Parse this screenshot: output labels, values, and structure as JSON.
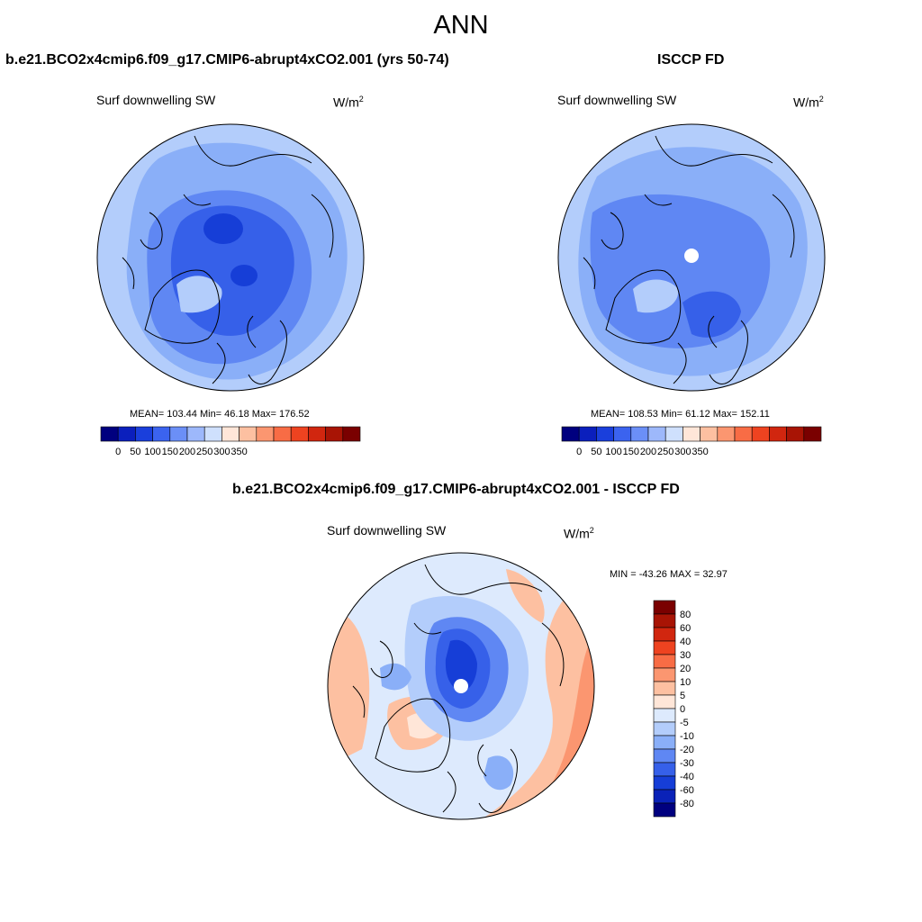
{
  "main_title": "ANN",
  "top_left": {
    "title": "b.e21.BCO2x4cmip6.f09_g17.CMIP6-abrupt4xCO2.001 (yrs 50-74)",
    "variable": "Surf downwelling SW",
    "units_base": "W/m",
    "units_exp": "2",
    "stats": "MEAN= 103.44  Min=  46.18  Max= 176.52"
  },
  "top_right": {
    "title": "ISCCP FD",
    "variable": "Surf downwelling SW",
    "units_base": "W/m",
    "units_exp": "2",
    "stats": "MEAN= 108.53  Min=  61.12  Max= 152.11"
  },
  "bottom": {
    "title": "b.e21.BCO2x4cmip6.f09_g17.CMIP6-abrupt4xCO2.001 - ISCCP FD",
    "variable": "Surf downwelling SW",
    "units_base": "W/m",
    "units_exp": "2",
    "minmax": "MIN = -43.26 MAX =  32.97"
  },
  "colorbar_abs": {
    "colors": [
      "#00007f",
      "#0b1fbd",
      "#1a3fdc",
      "#3b63ef",
      "#6b8ff7",
      "#9db8fb",
      "#cfe0fd",
      "#ffe6d8",
      "#fdc0a1",
      "#fb9670",
      "#f86c45",
      "#ee4320",
      "#d1260f",
      "#a81405",
      "#7a0000"
    ],
    "tick_labels": [
      "0",
      "50",
      "100",
      "150",
      "200",
      "250",
      "300",
      "350"
    ]
  },
  "colorbar_diff": {
    "colors_top_to_bottom": [
      "#7a0000",
      "#a81405",
      "#d1260f",
      "#ee4320",
      "#f86c45",
      "#fb9670",
      "#fdc0a1",
      "#ffe6d8",
      "#ddeafd",
      "#b3cdfb",
      "#8aaff8",
      "#5f87f3",
      "#3660e9",
      "#163ed7",
      "#0a22b8",
      "#00007f"
    ],
    "tick_labels": [
      "80",
      "60",
      "40",
      "30",
      "20",
      "10",
      "5",
      "0",
      "-5",
      "-10",
      "-20",
      "-30",
      "-40",
      "-60",
      "-80"
    ]
  },
  "map_colors": {
    "top_left": {
      "outer": "#b3cdfb",
      "ring": "#8aaff8",
      "inner": "#5f87f3",
      "core": "#3660e9",
      "deep": "#163ed7"
    },
    "top_right": {
      "outer": "#b3cdfb",
      "ring": "#8aaff8",
      "inner": "#5f87f3",
      "core": "#3660e9",
      "pole_mask": "#ffffff"
    },
    "bottom": {
      "base": "#ddeafd",
      "warm1": "#ffe6d8",
      "warm2": "#fdc0a1",
      "warm3": "#fb9670",
      "cool1": "#b3cdfb",
      "cool2": "#8aaff8",
      "cool3": "#3660e9",
      "cool4": "#163ed7",
      "pole_mask": "#ffffff"
    }
  }
}
